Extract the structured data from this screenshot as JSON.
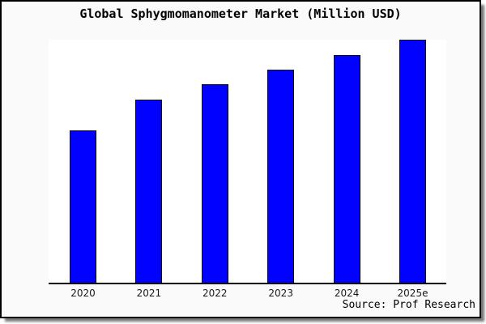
{
  "header": {
    "title": "Global Sphygmomanometer Market (Million USD)"
  },
  "footer": {
    "source_note": "Source: Prof Research"
  },
  "colors": {
    "bar_fill": "#0101ff",
    "bar_border": "#000000",
    "axis_line": "#000000",
    "frame_border": "#000000",
    "frame_background": "#fafafa",
    "plot_background": "#ffffff",
    "shadow": "#777777",
    "title_text": "#000000",
    "tick_text": "#1a1a1a"
  },
  "chart_data": {
    "type": "bar",
    "title": "Global Sphygmomanometer Market (Million USD)",
    "categories": [
      "2020",
      "2021",
      "2022",
      "2023",
      "2024",
      "2025e"
    ],
    "values_relative_pct": [
      62.8,
      75.2,
      81.6,
      87.7,
      93.7,
      100
    ],
    "value_axis_note": "No y-axis, ticks, gridlines or data labels are shown; values are estimated bar heights relative to the tallest bar (2025e = 100)",
    "xlabel": "",
    "ylabel": "",
    "legend": "none",
    "grid": false,
    "source_note": "Source: Prof Research"
  }
}
